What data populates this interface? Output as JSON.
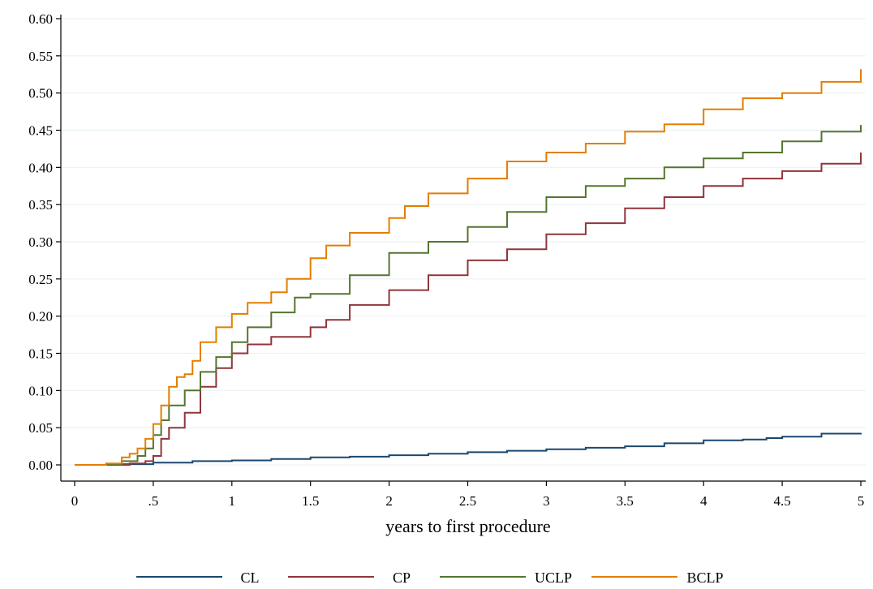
{
  "chart_data": {
    "type": "line",
    "title": "",
    "xlabel": "years to first procedure",
    "ylabel": "",
    "xlim": [
      0,
      5
    ],
    "ylim": [
      0,
      0.6
    ],
    "xticks": [
      {
        "value": 0,
        "label": "0"
      },
      {
        "value": 0.5,
        "label": ".5"
      },
      {
        "value": 1,
        "label": "1"
      },
      {
        "value": 1.5,
        "label": "1.5"
      },
      {
        "value": 2,
        "label": "2"
      },
      {
        "value": 2.5,
        "label": "2.5"
      },
      {
        "value": 3,
        "label": "3"
      },
      {
        "value": 3.5,
        "label": "3.5"
      },
      {
        "value": 4,
        "label": "4"
      },
      {
        "value": 4.5,
        "label": "4.5"
      },
      {
        "value": 5,
        "label": "5"
      }
    ],
    "yticks": [
      {
        "value": 0,
        "label": "0.00"
      },
      {
        "value": 0.05,
        "label": "0.05"
      },
      {
        "value": 0.1,
        "label": "0.10"
      },
      {
        "value": 0.15,
        "label": "0.15"
      },
      {
        "value": 0.2,
        "label": "0.20"
      },
      {
        "value": 0.25,
        "label": "0.25"
      },
      {
        "value": 0.3,
        "label": "0.30"
      },
      {
        "value": 0.35,
        "label": "0.35"
      },
      {
        "value": 0.4,
        "label": "0.40"
      },
      {
        "value": 0.45,
        "label": "0.45"
      },
      {
        "value": 0.5,
        "label": "0.50"
      },
      {
        "value": 0.55,
        "label": "0.55"
      },
      {
        "value": 0.6,
        "label": "0.60"
      }
    ],
    "grid": "horizontal",
    "legend_position": "bottom",
    "series": [
      {
        "name": "CL",
        "color": "#1a476f",
        "points": [
          [
            0,
            0
          ],
          [
            0.25,
            0.001
          ],
          [
            0.5,
            0.003
          ],
          [
            0.75,
            0.005
          ],
          [
            1,
            0.006
          ],
          [
            1.25,
            0.008
          ],
          [
            1.5,
            0.01
          ],
          [
            1.75,
            0.011
          ],
          [
            2,
            0.013
          ],
          [
            2.25,
            0.015
          ],
          [
            2.5,
            0.017
          ],
          [
            2.75,
            0.019
          ],
          [
            3,
            0.021
          ],
          [
            3.25,
            0.023
          ],
          [
            3.5,
            0.025
          ],
          [
            3.75,
            0.029
          ],
          [
            4,
            0.033
          ],
          [
            4.25,
            0.034
          ],
          [
            4.4,
            0.036
          ],
          [
            4.5,
            0.038
          ],
          [
            4.75,
            0.042
          ],
          [
            5,
            0.043
          ]
        ]
      },
      {
        "name": "CP",
        "color": "#90353b",
        "points": [
          [
            0,
            0
          ],
          [
            0.2,
            0
          ],
          [
            0.35,
            0.002
          ],
          [
            0.45,
            0.005
          ],
          [
            0.5,
            0.012
          ],
          [
            0.55,
            0.035
          ],
          [
            0.6,
            0.05
          ],
          [
            0.7,
            0.07
          ],
          [
            0.8,
            0.105
          ],
          [
            0.9,
            0.13
          ],
          [
            1,
            0.15
          ],
          [
            1.1,
            0.162
          ],
          [
            1.25,
            0.172
          ],
          [
            1.5,
            0.185
          ],
          [
            1.6,
            0.195
          ],
          [
            1.75,
            0.215
          ],
          [
            2,
            0.235
          ],
          [
            2.25,
            0.255
          ],
          [
            2.5,
            0.275
          ],
          [
            2.75,
            0.29
          ],
          [
            3,
            0.31
          ],
          [
            3.25,
            0.325
          ],
          [
            3.5,
            0.345
          ],
          [
            3.75,
            0.36
          ],
          [
            4,
            0.375
          ],
          [
            4.25,
            0.385
          ],
          [
            4.5,
            0.395
          ],
          [
            4.75,
            0.405
          ],
          [
            5,
            0.42
          ]
        ]
      },
      {
        "name": "UCLP",
        "color": "#55752f",
        "points": [
          [
            0,
            0
          ],
          [
            0.2,
            0.001
          ],
          [
            0.3,
            0.005
          ],
          [
            0.4,
            0.012
          ],
          [
            0.45,
            0.022
          ],
          [
            0.5,
            0.04
          ],
          [
            0.55,
            0.06
          ],
          [
            0.6,
            0.08
          ],
          [
            0.7,
            0.1
          ],
          [
            0.8,
            0.125
          ],
          [
            0.9,
            0.145
          ],
          [
            1,
            0.165
          ],
          [
            1.1,
            0.185
          ],
          [
            1.25,
            0.205
          ],
          [
            1.4,
            0.225
          ],
          [
            1.5,
            0.23
          ],
          [
            1.75,
            0.255
          ],
          [
            2,
            0.285
          ],
          [
            2.25,
            0.3
          ],
          [
            2.5,
            0.32
          ],
          [
            2.75,
            0.34
          ],
          [
            3,
            0.36
          ],
          [
            3.25,
            0.375
          ],
          [
            3.5,
            0.385
          ],
          [
            3.75,
            0.4
          ],
          [
            4,
            0.412
          ],
          [
            4.25,
            0.42
          ],
          [
            4.5,
            0.435
          ],
          [
            4.75,
            0.448
          ],
          [
            5,
            0.457
          ]
        ]
      },
      {
        "name": "BCLP",
        "color": "#e37e00",
        "points": [
          [
            0,
            0
          ],
          [
            0.2,
            0.002
          ],
          [
            0.3,
            0.01
          ],
          [
            0.35,
            0.015
          ],
          [
            0.4,
            0.022
          ],
          [
            0.45,
            0.035
          ],
          [
            0.5,
            0.055
          ],
          [
            0.55,
            0.08
          ],
          [
            0.6,
            0.105
          ],
          [
            0.65,
            0.118
          ],
          [
            0.7,
            0.122
          ],
          [
            0.75,
            0.14
          ],
          [
            0.8,
            0.165
          ],
          [
            0.9,
            0.185
          ],
          [
            1,
            0.203
          ],
          [
            1.1,
            0.218
          ],
          [
            1.25,
            0.232
          ],
          [
            1.35,
            0.25
          ],
          [
            1.5,
            0.278
          ],
          [
            1.6,
            0.295
          ],
          [
            1.75,
            0.312
          ],
          [
            2,
            0.332
          ],
          [
            2.1,
            0.348
          ],
          [
            2.25,
            0.365
          ],
          [
            2.5,
            0.385
          ],
          [
            2.75,
            0.408
          ],
          [
            3,
            0.42
          ],
          [
            3.25,
            0.432
          ],
          [
            3.5,
            0.448
          ],
          [
            3.75,
            0.458
          ],
          [
            4,
            0.478
          ],
          [
            4.25,
            0.493
          ],
          [
            4.5,
            0.5
          ],
          [
            4.75,
            0.515
          ],
          [
            5,
            0.532
          ]
        ]
      }
    ]
  }
}
